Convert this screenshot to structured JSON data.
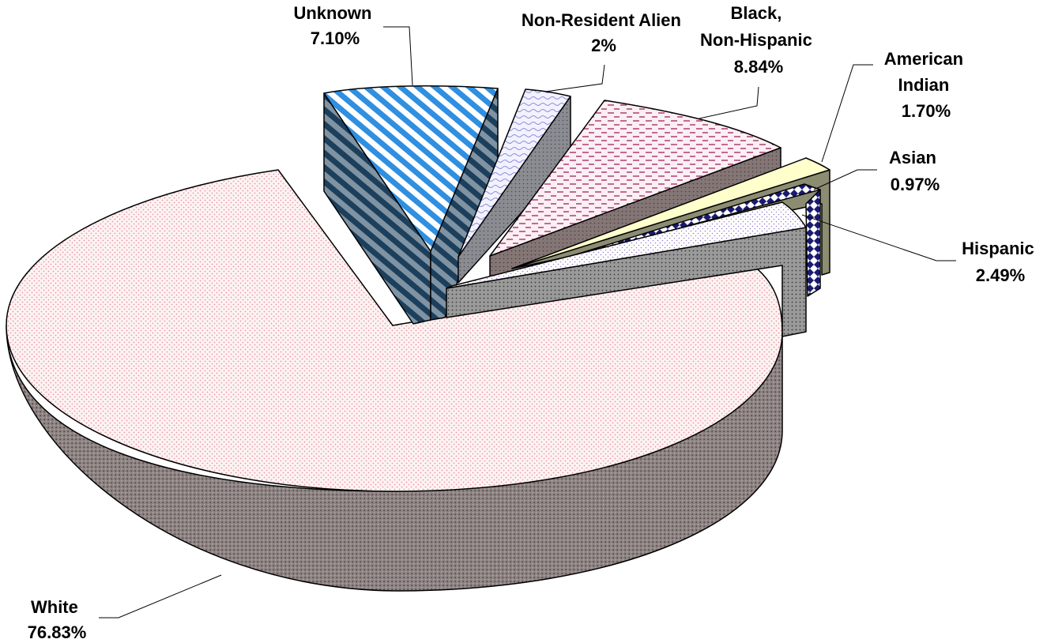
{
  "chart_data": {
    "type": "pie",
    "style": "3d-exploded",
    "slices": [
      {
        "name": "White",
        "value": 76.83,
        "label": "76.83%",
        "color": "#f6d3d3",
        "side_color": "#8a7f80",
        "pattern": "pink-dots"
      },
      {
        "name": "Unknown",
        "value": 7.1,
        "label": "7.10%",
        "color": "#2f8fe0",
        "side_color": "#23506e",
        "pattern": "blue-diagonal-stripes"
      },
      {
        "name": "Non-Resident Alien",
        "value": 2,
        "label": "2%",
        "color": "#c9c9f2",
        "side_color": "#7f7f90",
        "pattern": "lavender-waves"
      },
      {
        "name": "Black, Non-Hispanic",
        "value": 8.84,
        "label": "8.84%",
        "color": "#b04a78",
        "side_color": "#807070",
        "pattern": "maroon-dashes"
      },
      {
        "name": "American Indian",
        "value": 1.7,
        "label": "1.70%",
        "color": "#ffffcc",
        "side_color": "#8a8a70",
        "pattern": "solid-cream"
      },
      {
        "name": "Asian",
        "value": 0.97,
        "label": "0.97%",
        "color": "#1a1a70",
        "side_color": "#1a1a70",
        "pattern": "navy-diamonds"
      },
      {
        "name": "Hispanic",
        "value": 2.49,
        "label": "2.49%",
        "color": "#9a80c8",
        "side_color": "#7a7a80",
        "pattern": "purple-dots"
      }
    ],
    "label_lines": {
      "white": [
        "White",
        "76.83%"
      ],
      "unknown": [
        "Unknown",
        "7.10%"
      ],
      "nra": [
        "Non-Resident Alien",
        "2%"
      ],
      "black": [
        "Black,",
        "Non-Hispanic",
        "8.84%"
      ],
      "amind": [
        "American",
        "Indian",
        "1.70%"
      ],
      "asian": [
        "Asian",
        "0.97%"
      ],
      "hispanic": [
        "Hispanic",
        "2.49%"
      ]
    }
  }
}
